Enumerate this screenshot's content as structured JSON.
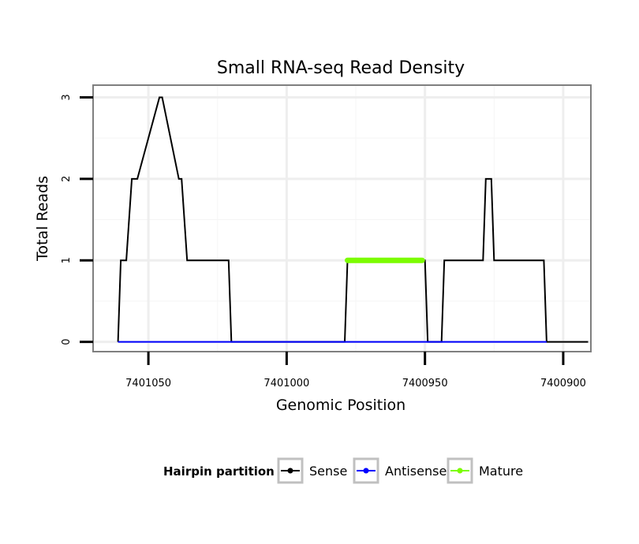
{
  "chart_data": {
    "type": "line",
    "title": "Small RNA-seq Read Density",
    "xlabel": "Genomic Position",
    "ylabel": "Total Reads",
    "xlim": [
      7401070,
      7400890
    ],
    "x_reversed": true,
    "ylim": [
      -0.12,
      3.15
    ],
    "x_ticks": [
      7401050,
      7401000,
      7400950,
      7400900
    ],
    "x_tick_labels": [
      "7401050",
      "7401000",
      "7400950",
      "7400900"
    ],
    "y_ticks": [
      0,
      1,
      2,
      3
    ],
    "y_tick_labels": [
      "0",
      "1",
      "2",
      "3"
    ],
    "grid": true,
    "legend": {
      "title": "Hairpin partition",
      "placement": "bottom",
      "items": [
        {
          "name": "Sense",
          "color": "#000000"
        },
        {
          "name": "Antisense",
          "color": "#0000ff"
        },
        {
          "name": "Mature",
          "color": "#7cfc00"
        }
      ]
    },
    "series": [
      {
        "name": "Sense",
        "color": "#000000",
        "x": [
          7401061,
          7401060,
          7401058,
          7401056,
          7401054,
          7401046,
          7401045,
          7401039,
          7401038,
          7401036,
          7401035,
          7401021,
          7401020,
          7400979,
          7400978,
          7400950,
          7400949,
          7400944,
          7400943,
          7400929,
          7400928,
          7400926,
          7400925,
          7400907,
          7400906,
          7400891
        ],
        "y": [
          0,
          1,
          1,
          2,
          2,
          3,
          3,
          2,
          2,
          1,
          1,
          1,
          0,
          0,
          1,
          1,
          0,
          0,
          1,
          1,
          2,
          2,
          1,
          1,
          0,
          0
        ]
      },
      {
        "name": "Antisense",
        "color": "#0000ff",
        "x": [
          7401061,
          7400906
        ],
        "y": [
          0,
          0
        ]
      },
      {
        "name": "Mature",
        "color": "#7cfc00",
        "x": [
          7400978,
          7400951
        ],
        "y": [
          1,
          1
        ]
      }
    ]
  }
}
